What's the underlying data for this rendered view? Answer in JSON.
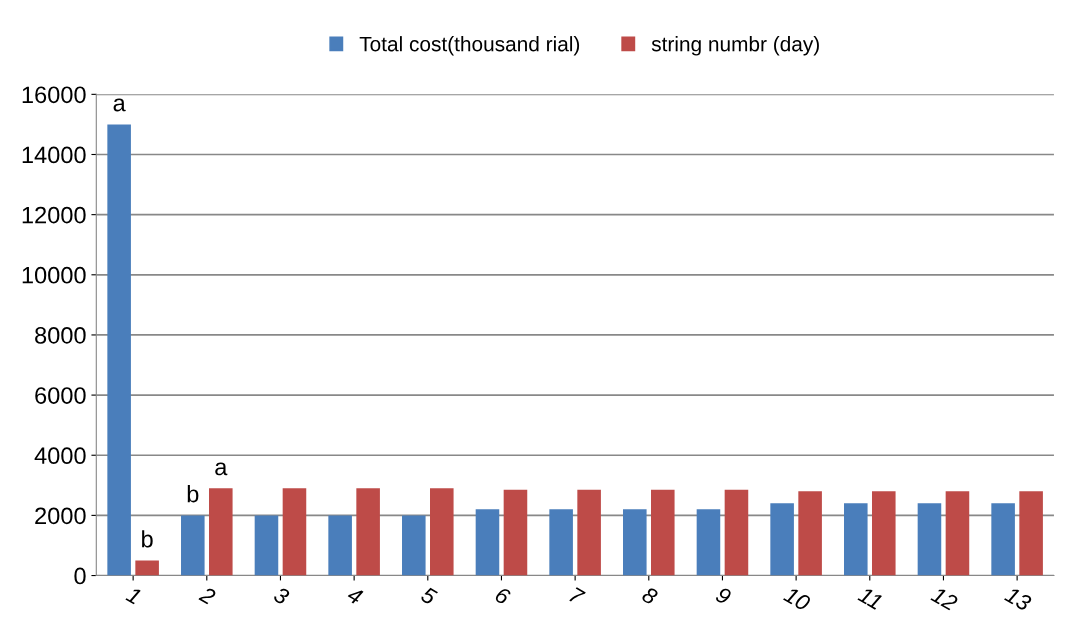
{
  "chart_data": {
    "type": "bar",
    "categories": [
      "1",
      "2",
      "3",
      "4",
      "5",
      "6",
      "7",
      "8",
      "9",
      "10",
      "11",
      "12",
      "13"
    ],
    "series": [
      {
        "name": "Total cost(thousand rial)",
        "color": "#4a7ebb",
        "values": [
          15000,
          2000,
          2000,
          2000,
          2000,
          2200,
          2200,
          2200,
          2200,
          2400,
          2400,
          2400,
          2400
        ]
      },
      {
        "name": "string numbr (day)",
        "color": "#be4b48",
        "values": [
          500,
          2900,
          2900,
          2900,
          2900,
          2850,
          2850,
          2850,
          2850,
          2800,
          2800,
          2800,
          2800
        ]
      }
    ],
    "ylim": [
      0,
      16000
    ],
    "yticks": [
      0,
      2000,
      4000,
      6000,
      8000,
      10000,
      12000,
      14000,
      16000
    ],
    "grid": "y",
    "legend": "top",
    "annotations": [
      {
        "text": "a",
        "x": "1",
        "y": 15000
      },
      {
        "text": "b",
        "x": "1",
        "y": 500
      },
      {
        "text": "b",
        "x": "2",
        "y": 2000
      },
      {
        "text": "a",
        "x": "2",
        "y": 2900
      }
    ]
  }
}
